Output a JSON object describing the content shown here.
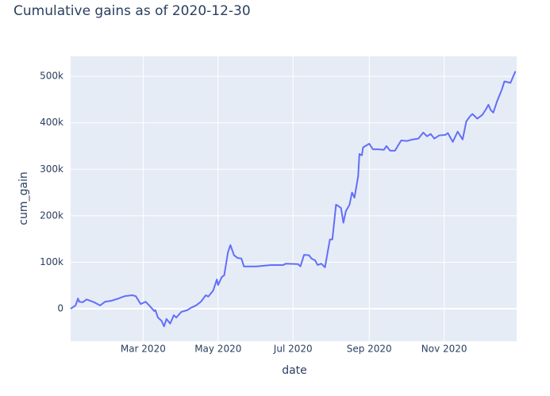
{
  "chart_data": {
    "type": "line",
    "title": "Cumulative gains as of 2020-12-30",
    "x_label": "date",
    "y_label": "cum_gain",
    "color": "#636efa",
    "grid": true,
    "xlim": [
      "2020-01-02",
      "2020-12-30"
    ],
    "ylim": [
      -70000,
      543000
    ],
    "xticks": [
      {
        "value": "2020-03-01",
        "label": "Mar 2020"
      },
      {
        "value": "2020-05-01",
        "label": "May 2020"
      },
      {
        "value": "2020-07-01",
        "label": "Jul 2020"
      },
      {
        "value": "2020-09-01",
        "label": "Sep 2020"
      },
      {
        "value": "2020-11-01",
        "label": "Nov 2020"
      }
    ],
    "yticks": [
      0,
      {
        "value": 100000,
        "label": "100k"
      },
      {
        "value": 200000,
        "label": "200k"
      },
      {
        "value": 300000,
        "label": "300k"
      },
      {
        "value": 400000,
        "label": "400k"
      },
      {
        "value": 500000,
        "label": "500k"
      }
    ],
    "x": [
      "2020-01-02",
      "2020-01-06",
      "2020-01-08",
      "2020-01-09",
      "2020-01-12",
      "2020-01-15",
      "2020-01-21",
      "2020-01-26",
      "2020-01-30",
      "2020-02-04",
      "2020-02-10",
      "2020-02-15",
      "2020-02-21",
      "2020-02-24",
      "2020-02-28",
      "2020-03-03",
      "2020-03-06",
      "2020-03-10",
      "2020-03-11",
      "2020-03-13",
      "2020-03-16",
      "2020-03-18",
      "2020-03-20",
      "2020-03-23",
      "2020-03-26",
      "2020-03-28",
      "2020-04-01",
      "2020-04-06",
      "2020-04-09",
      "2020-04-13",
      "2020-04-17",
      "2020-04-21",
      "2020-04-23",
      "2020-04-27",
      "2020-04-30",
      "2020-05-01",
      "2020-05-04",
      "2020-05-06",
      "2020-05-09",
      "2020-05-11",
      "2020-05-14",
      "2020-05-17",
      "2020-05-20",
      "2020-05-22",
      "2020-06-01",
      "2020-06-13",
      "2020-06-23",
      "2020-06-25",
      "2020-07-05",
      "2020-07-07",
      "2020-07-10",
      "2020-07-14",
      "2020-07-16",
      "2020-07-19",
      "2020-07-21",
      "2020-07-24",
      "2020-07-27",
      "2020-07-31",
      "2020-08-02",
      "2020-08-05",
      "2020-08-09",
      "2020-08-11",
      "2020-08-13",
      "2020-08-16",
      "2020-08-18",
      "2020-08-20",
      "2020-08-23",
      "2020-08-24",
      "2020-08-26",
      "2020-08-27",
      "2020-09-01",
      "2020-09-04",
      "2020-09-08",
      "2020-09-13",
      "2020-09-15",
      "2020-09-18",
      "2020-09-22",
      "2020-09-24",
      "2020-09-27",
      "2020-10-02",
      "2020-10-06",
      "2020-10-11",
      "2020-10-15",
      "2020-10-18",
      "2020-10-21",
      "2020-10-24",
      "2020-10-28",
      "2020-11-02",
      "2020-11-04",
      "2020-11-08",
      "2020-11-12",
      "2020-11-16",
      "2020-11-19",
      "2020-11-22",
      "2020-11-24",
      "2020-11-28",
      "2020-12-02",
      "2020-12-05",
      "2020-12-07",
      "2020-12-09",
      "2020-12-11",
      "2020-12-14",
      "2020-12-18",
      "2020-12-20",
      "2020-12-25",
      "2020-12-29"
    ],
    "values": [
      0,
      7000,
      22000,
      15000,
      14000,
      20000,
      14000,
      7000,
      15000,
      17000,
      22000,
      27000,
      29000,
      27000,
      10000,
      15000,
      7000,
      -5000,
      -3000,
      -19000,
      -26000,
      -38000,
      -22000,
      -32000,
      -14000,
      -19000,
      -7000,
      -3000,
      2000,
      7000,
      15000,
      29000,
      26000,
      39000,
      63000,
      51000,
      68000,
      72000,
      121000,
      137000,
      115000,
      109000,
      108000,
      91000,
      91000,
      94000,
      94000,
      97000,
      96000,
      91000,
      116000,
      115000,
      108000,
      104000,
      94000,
      97000,
      89000,
      149000,
      149000,
      224000,
      217000,
      185000,
      210000,
      224000,
      250000,
      239000,
      285000,
      333000,
      330000,
      347000,
      355000,
      343000,
      343000,
      342000,
      350000,
      340000,
      340000,
      349000,
      362000,
      361000,
      364000,
      366000,
      379000,
      371000,
      376000,
      366000,
      373000,
      374000,
      378000,
      359000,
      381000,
      364000,
      403000,
      414000,
      419000,
      409000,
      417000,
      429000,
      439000,
      427000,
      422000,
      446000,
      472000,
      489000,
      486000,
      511000
    ]
  }
}
